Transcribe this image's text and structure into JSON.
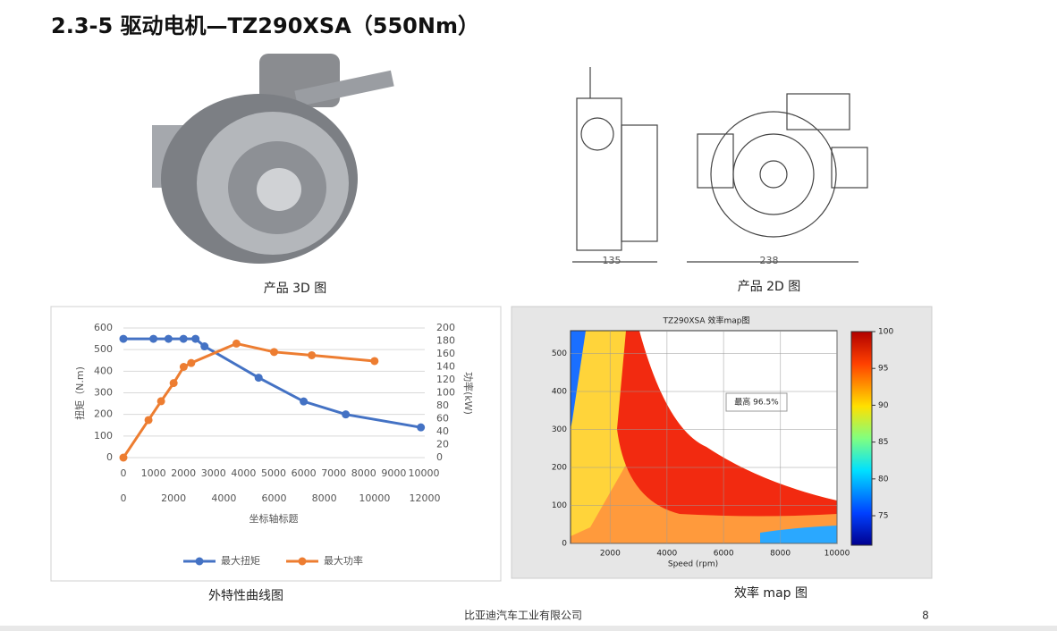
{
  "header": {
    "title": "2.3-5  驱动电机—TZ290XSA（550Nm）"
  },
  "images": {
    "caption_3d": "产品 3D 图",
    "caption_2d": "产品 2D 图",
    "dimensions": [
      "135",
      "238"
    ]
  },
  "captions": {
    "curve": "外特性曲线图",
    "map": "效率 map 图"
  },
  "footer": {
    "company": "比亚迪汽车工业有限公司",
    "page": "8"
  },
  "chart_data": [
    {
      "type": "line",
      "x_label": "坐标轴标题",
      "y_label": "扭矩（N.m)",
      "y2_label": "功率(kW)",
      "xlim": [
        0,
        10000
      ],
      "xticks": [
        0,
        1000,
        2000,
        3000,
        4000,
        5000,
        6000,
        7000,
        8000,
        9000,
        10000
      ],
      "x2lim": [
        0,
        12000
      ],
      "x2ticks": [
        0,
        2000,
        4000,
        6000,
        8000,
        10000,
        12000
      ],
      "ylim": [
        0,
        600
      ],
      "yticks": [
        0,
        100,
        200,
        300,
        400,
        500,
        600
      ],
      "y2lim": [
        0,
        200
      ],
      "y2ticks": [
        0,
        20,
        40,
        60,
        80,
        100,
        120,
        140,
        160,
        180,
        200
      ],
      "grid": true,
      "legend": "bottom",
      "series": [
        {
          "name": "最大扭矩",
          "color": "#4472c4",
          "x": [
            0,
            1000,
            1500,
            2000,
            2400,
            2700,
            4500,
            6000,
            7400,
            9900
          ],
          "values": [
            550,
            550,
            550,
            550,
            550,
            515,
            370,
            260,
            200,
            140
          ]
        },
        {
          "name": "最大功率",
          "color": "#ed7d31",
          "axis": "y2",
          "x_axis": "x2",
          "x": [
            0,
            1000,
            1500,
            2000,
            2400,
            2700,
            4500,
            6000,
            7500,
            10000
          ],
          "values": [
            0,
            58,
            87,
            115,
            140,
            146,
            176,
            163,
            158,
            149
          ]
        }
      ]
    },
    {
      "type": "contour",
      "title": "TZ290XSA 效率map图",
      "x_label": "Speed  (rpm)",
      "annotation": "最高 96.5%",
      "xlim": [
        600,
        10000
      ],
      "xticks": [
        2000,
        4000,
        6000,
        8000,
        10000
      ],
      "ylim": [
        0,
        560
      ],
      "yticks": [
        0,
        100,
        200,
        300,
        400,
        500
      ],
      "clim": [
        71,
        100
      ],
      "cticks": [
        75,
        80,
        85,
        90,
        95,
        100
      ]
    }
  ]
}
